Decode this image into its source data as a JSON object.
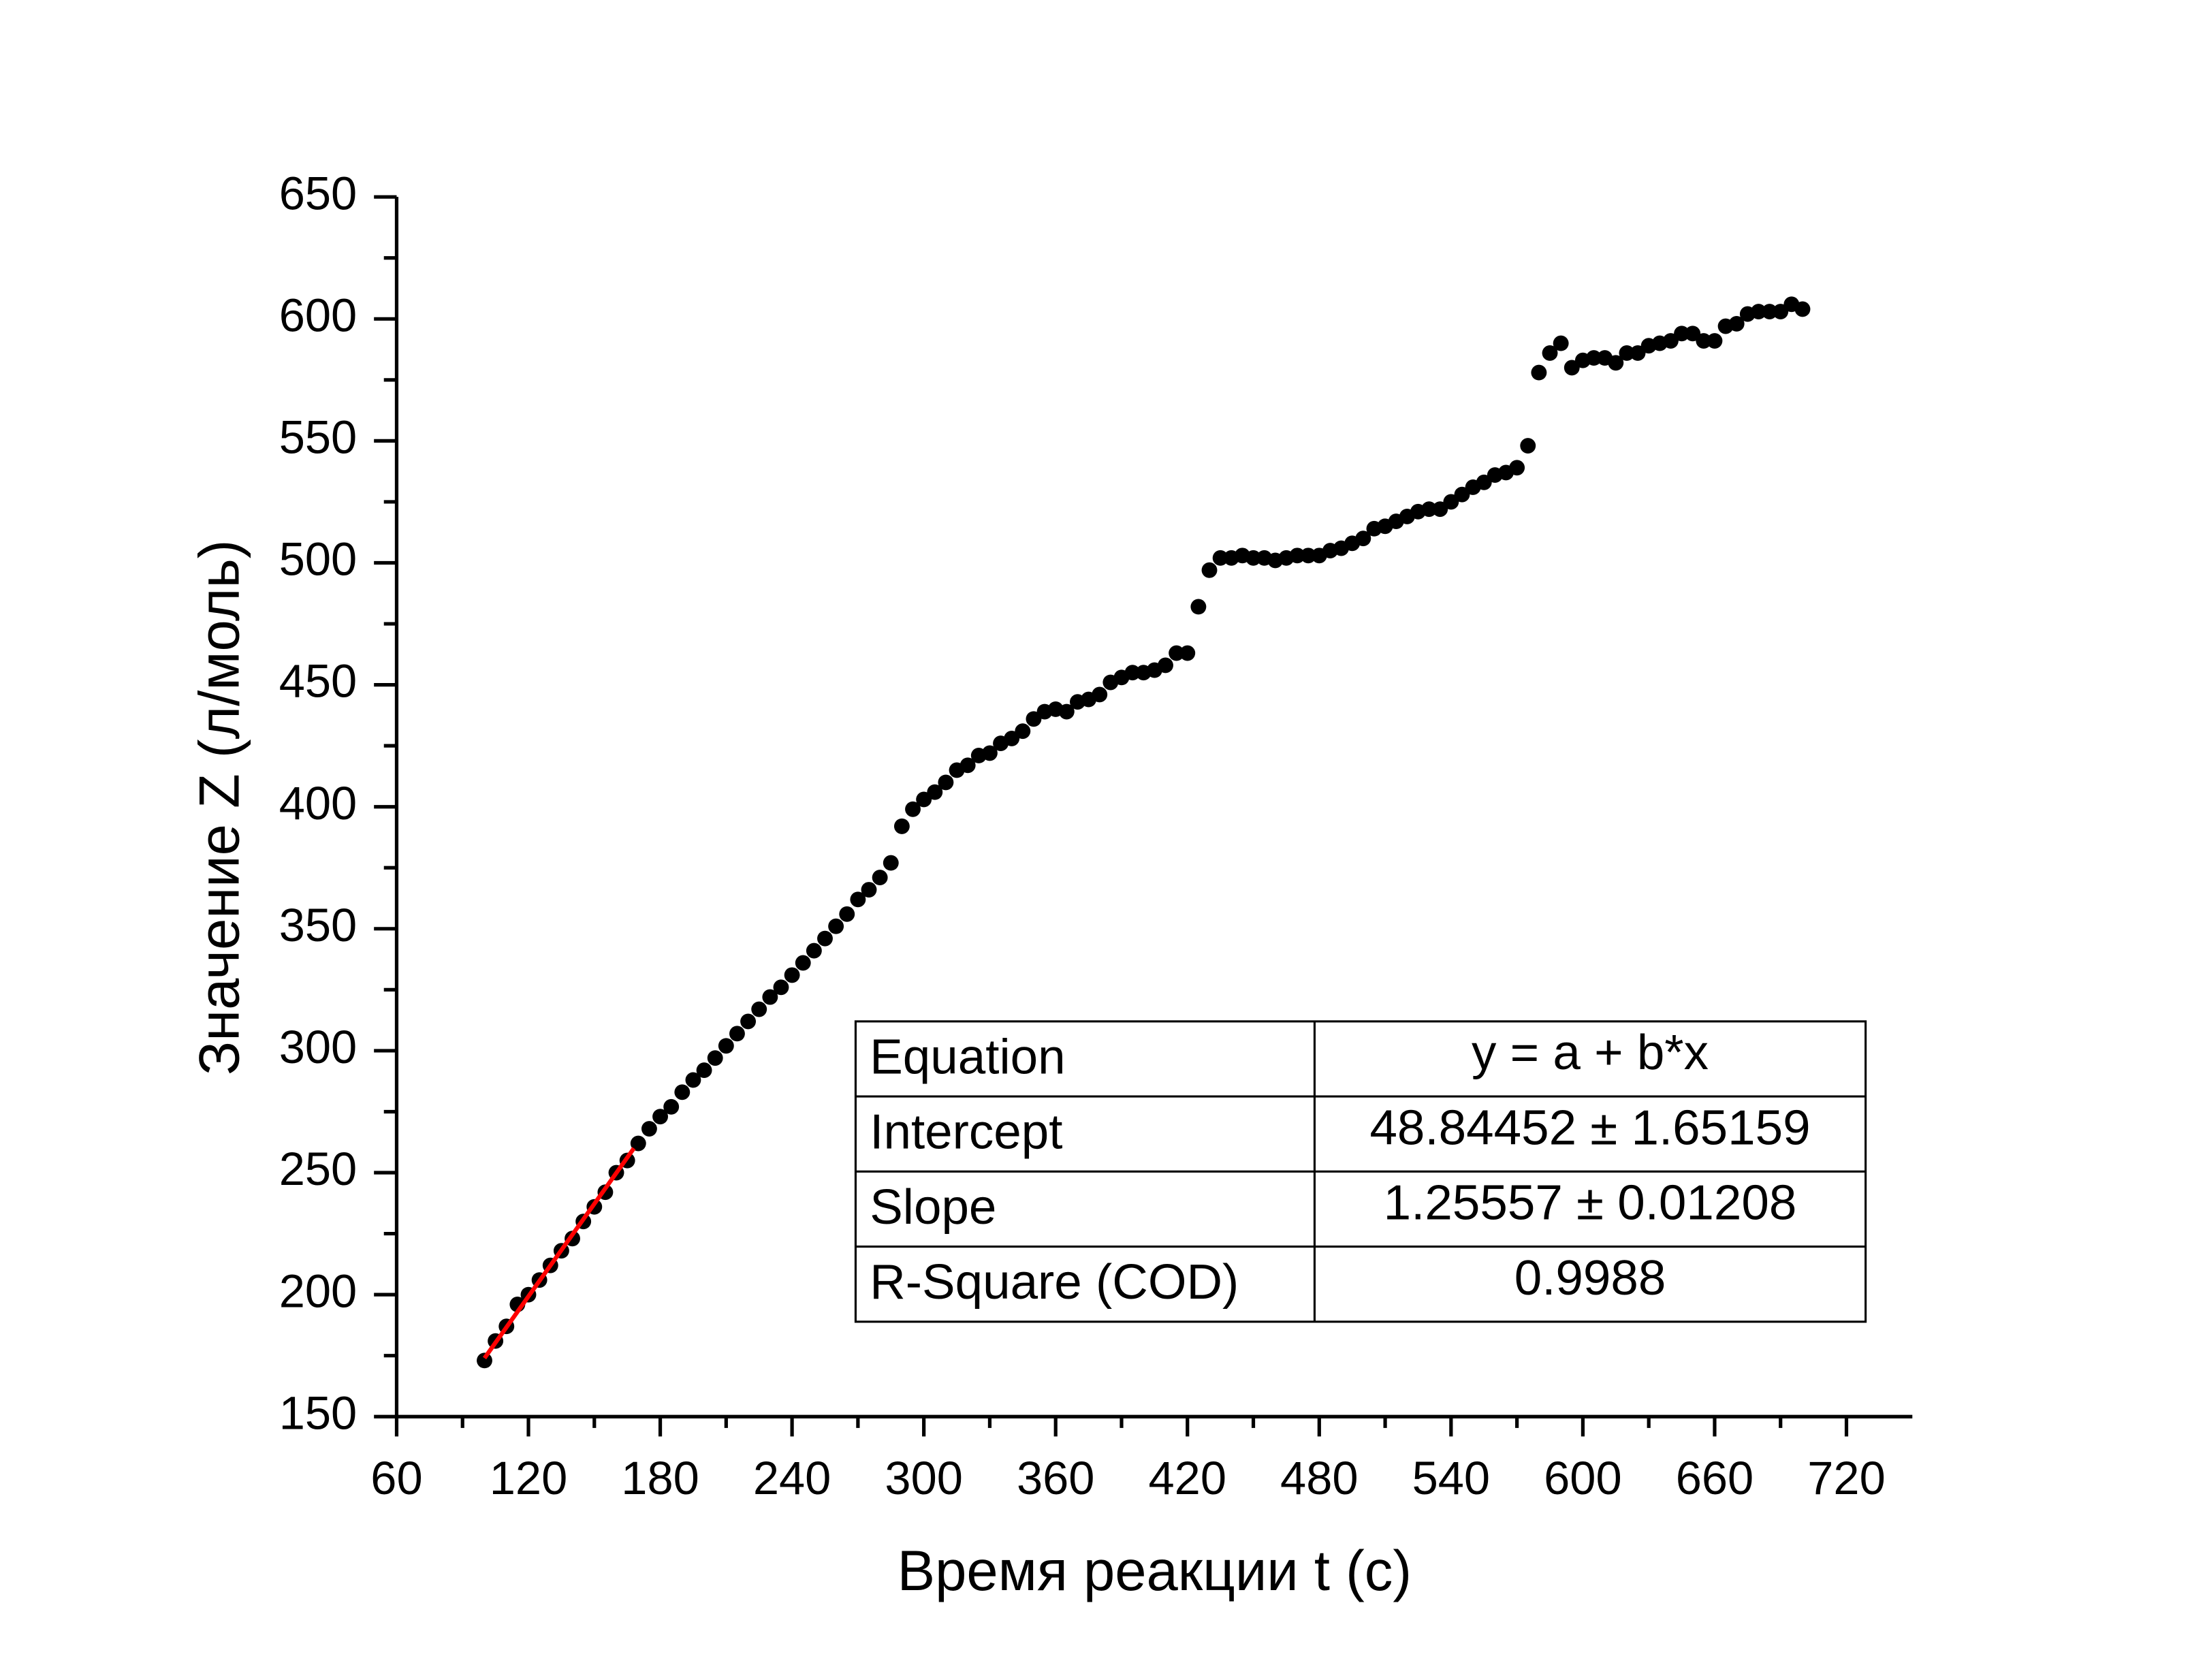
{
  "chart_data": {
    "type": "scatter",
    "xlabel": "Время реакции t (с)",
    "ylabel": "Значение Z (л/моль)",
    "xlim": [
      60,
      750
    ],
    "xticks": [
      60,
      120,
      180,
      240,
      300,
      360,
      420,
      480,
      540,
      600,
      660,
      720
    ],
    "ylim": [
      150,
      650
    ],
    "yticks": [
      150,
      200,
      250,
      300,
      350,
      400,
      450,
      500,
      550,
      600,
      650
    ],
    "color": "#000000",
    "x": [
      100,
      105,
      110,
      115,
      120,
      125,
      130,
      135,
      140,
      145,
      150,
      155,
      160,
      165,
      170,
      175,
      180,
      185,
      190,
      195,
      200,
      205,
      210,
      215,
      220,
      225,
      230,
      235,
      240,
      245,
      250,
      255,
      260,
      265,
      270,
      275,
      280,
      285,
      290,
      295,
      300,
      305,
      310,
      315,
      320,
      325,
      330,
      335,
      340,
      345,
      350,
      355,
      360,
      365,
      370,
      375,
      380,
      385,
      390,
      395,
      400,
      405,
      410,
      415,
      420,
      425,
      430,
      435,
      440,
      445,
      450,
      455,
      460,
      465,
      470,
      475,
      480,
      485,
      490,
      495,
      500,
      505,
      510,
      515,
      520,
      525,
      530,
      535,
      540,
      545,
      550,
      555,
      560,
      565,
      570,
      575,
      580,
      585,
      590,
      595,
      600,
      605,
      610,
      615,
      620,
      625,
      630,
      635,
      640,
      645,
      650,
      655,
      660,
      665,
      670,
      675,
      680,
      685,
      690,
      695,
      700
    ],
    "values": [
      173,
      181,
      187,
      196,
      200,
      206,
      212,
      218,
      223,
      230,
      236,
      242,
      250,
      255,
      262,
      268,
      273,
      277,
      283,
      288,
      292,
      297,
      302,
      307,
      312,
      317,
      322,
      326,
      331,
      336,
      341,
      346,
      351,
      356,
      362,
      366,
      371,
      377,
      392,
      399,
      403,
      406,
      410,
      415,
      417,
      421,
      422,
      426,
      428,
      431,
      436,
      439,
      440,
      439,
      443,
      444,
      446,
      451,
      453,
      455,
      455,
      456,
      458,
      463,
      463,
      482,
      497,
      502,
      502,
      503,
      502,
      502,
      501,
      502,
      503,
      503,
      503,
      505,
      506,
      508,
      510,
      514,
      515,
      517,
      519,
      521,
      522,
      522,
      525,
      528,
      531,
      533,
      536,
      537,
      539,
      548,
      578,
      586,
      590,
      580,
      583,
      584,
      584,
      582,
      586,
      586,
      589,
      590,
      591,
      594,
      594,
      591,
      591,
      597,
      598,
      602,
      603,
      603,
      603,
      606,
      604
    ],
    "fit_line": {
      "color": "#ff0000",
      "x": [
        100,
        168
      ],
      "values": [
        174,
        260
      ]
    },
    "table": {
      "rows": [
        [
          "Equation",
          "y = a + b*x"
        ],
        [
          "Intercept",
          "48.84452 ± 1.65159"
        ],
        [
          "Slope",
          "1.25557 ± 0.01208"
        ],
        [
          "R-Square (COD)",
          "0.9988"
        ]
      ]
    }
  }
}
